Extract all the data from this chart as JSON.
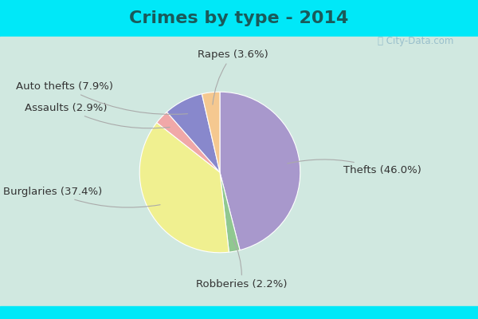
{
  "title": "Crimes by type - 2014",
  "title_fontsize": 16,
  "title_fontweight": "bold",
  "title_color": "#1a5a5a",
  "slices": [
    {
      "label": "Thefts",
      "pct": 46.0,
      "color": "#a898cc"
    },
    {
      "label": "Robberies",
      "pct": 2.2,
      "color": "#90c890"
    },
    {
      "label": "Burglaries",
      "pct": 37.4,
      "color": "#f0f090"
    },
    {
      "label": "Assaults",
      "pct": 2.9,
      "color": "#f0a8a8"
    },
    {
      "label": "Auto thefts",
      "pct": 7.9,
      "color": "#8888cc"
    },
    {
      "label": "Rapes",
      "pct": 3.6,
      "color": "#f5c890"
    }
  ],
  "background_top_color": "#00e8f8",
  "background_main_color": "#d0e8e0",
  "watermark_text": "City-Data.com",
  "startangle": 90,
  "label_fontsize": 9.5,
  "label_color": "#333333",
  "top_bar_height": 0.115,
  "bottom_bar_height": 0.04
}
